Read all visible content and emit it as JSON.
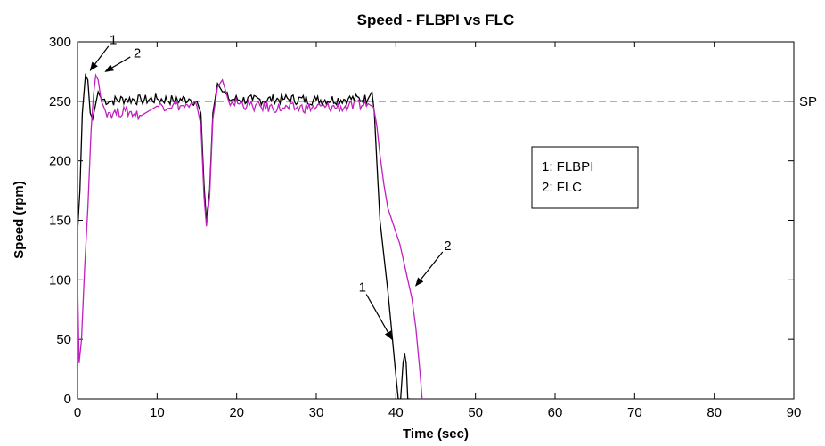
{
  "chart_data": {
    "type": "line",
    "title": "Speed - FLBPI vs FLC",
    "xlabel": "Time (sec)",
    "ylabel": "Speed (rpm)",
    "xlim": [
      0,
      90
    ],
    "ylim": [
      0,
      300
    ],
    "xticks": [
      0,
      10,
      20,
      30,
      40,
      50,
      60,
      70,
      80,
      90
    ],
    "yticks": [
      0,
      50,
      100,
      150,
      200,
      250,
      300
    ],
    "grid": false,
    "legend": {
      "placement": "center-right",
      "entries": [
        "1: FLBPI",
        "2: FLC"
      ]
    },
    "reference_line": {
      "y": 250,
      "label": "SP",
      "color": "#1f1f8f",
      "style": "dashed"
    },
    "series": [
      {
        "id": "1",
        "color": "#000000",
        "x": [
          0,
          0.3,
          0.6,
          1.0,
          1.3,
          1.6,
          1.9,
          2.2,
          2.6,
          3.0,
          4,
          6,
          8,
          10,
          12,
          14,
          15.0,
          15.5,
          15.9,
          16.2,
          16.6,
          17.0,
          17.6,
          18.2,
          19,
          22,
          26,
          30,
          34,
          36.5,
          37.0,
          37.3,
          37.6,
          38.0,
          38.5,
          39.0,
          39.5,
          40.0,
          40.3,
          40.6,
          40.9,
          41.1,
          41.3,
          41.5,
          41.8
        ],
        "y": [
          140,
          175,
          240,
          272,
          268,
          240,
          235,
          245,
          258,
          252,
          250,
          252,
          251,
          252,
          251,
          252,
          250,
          240,
          180,
          150,
          175,
          240,
          265,
          258,
          252,
          251,
          252,
          251,
          252,
          252,
          258,
          240,
          200,
          150,
          120,
          90,
          55,
          20,
          0,
          0,
          30,
          38,
          30,
          0,
          0
        ]
      },
      {
        "id": "2",
        "color": "#c020c0",
        "x": [
          0,
          0.2,
          0.5,
          0.9,
          1.3,
          1.7,
          2.0,
          2.3,
          2.6,
          3.0,
          3.5,
          4.5,
          6,
          8,
          10,
          12,
          14,
          15.0,
          15.5,
          15.9,
          16.2,
          16.6,
          17.0,
          17.6,
          18.2,
          19,
          22,
          26,
          30,
          34,
          36.5,
          37.2,
          37.6,
          38.0,
          38.5,
          39.0,
          39.5,
          40.0,
          40.5,
          41.0,
          41.5,
          42.0,
          42.5,
          43.0,
          43.3
        ],
        "y": [
          100,
          30,
          50,
          110,
          160,
          225,
          255,
          272,
          268,
          250,
          242,
          240,
          242,
          238,
          246,
          247,
          245,
          246,
          230,
          170,
          145,
          170,
          235,
          262,
          268,
          250,
          246,
          244,
          245,
          245,
          248,
          245,
          230,
          205,
          180,
          160,
          150,
          140,
          130,
          115,
          100,
          85,
          60,
          25,
          0
        ]
      }
    ],
    "annotations": [
      {
        "text": "1",
        "x": 4.5,
        "y": 298,
        "arrow_to": [
          1.6,
          276
        ]
      },
      {
        "text": "2",
        "x": 7.5,
        "y": 287,
        "arrow_to": [
          3.5,
          275
        ]
      },
      {
        "text": "1",
        "x": 35.8,
        "y": 90,
        "arrow_to": [
          39.5,
          50
        ]
      },
      {
        "text": "2",
        "x": 46.5,
        "y": 125,
        "arrow_to": [
          42.5,
          95
        ]
      }
    ]
  }
}
